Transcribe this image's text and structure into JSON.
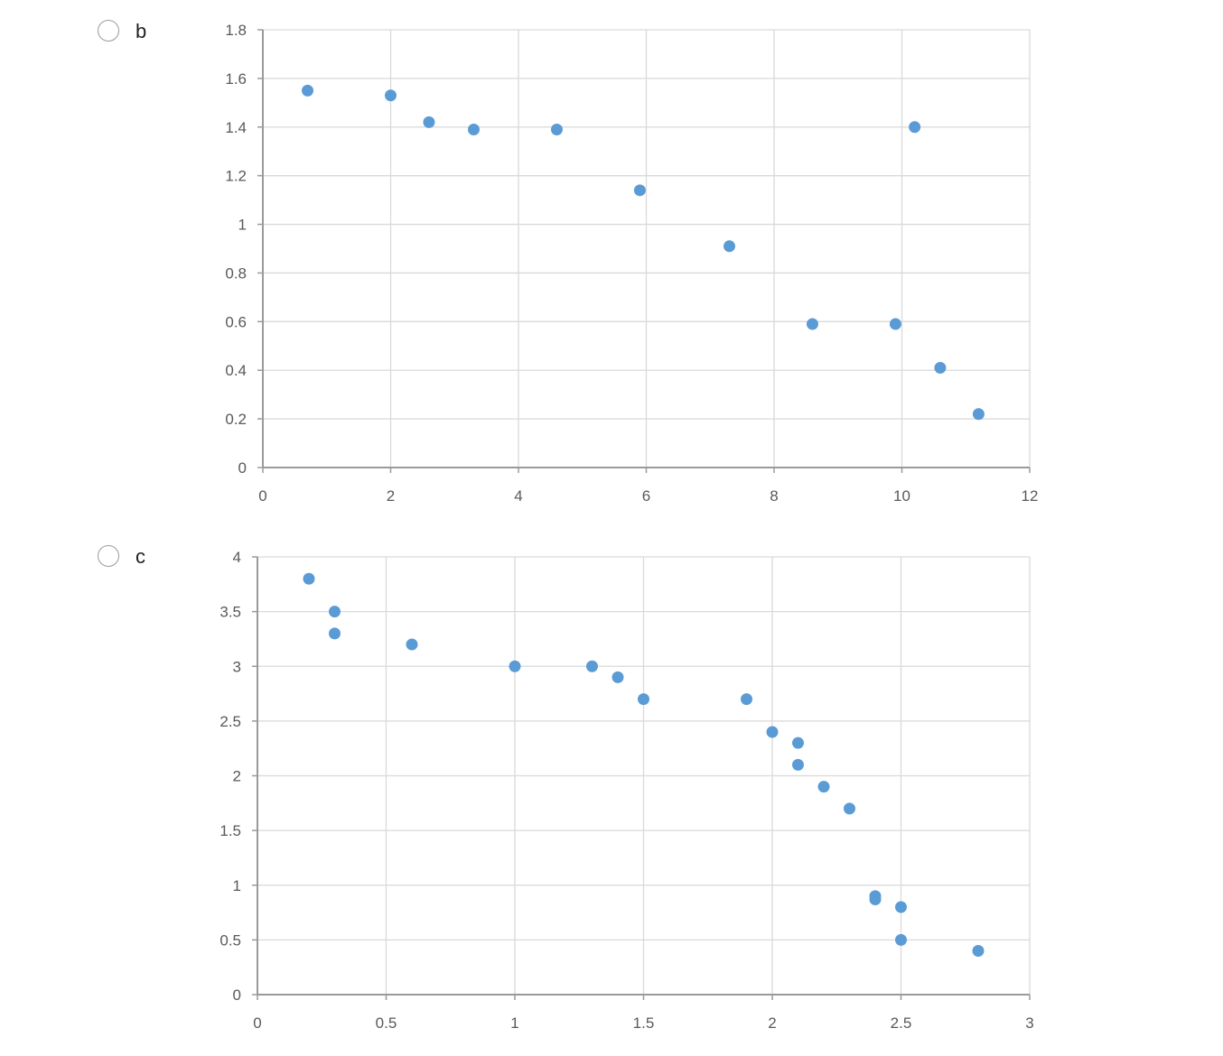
{
  "options": [
    {
      "label": "b",
      "chart_data": {
        "type": "scatter",
        "title": "",
        "xlabel": "",
        "ylabel": "",
        "xlim": [
          0,
          12
        ],
        "ylim": [
          0,
          1.8
        ],
        "xticks": [
          "0",
          "2",
          "4",
          "6",
          "8",
          "10",
          "12"
        ],
        "yticks": [
          "0",
          "0.2",
          "0.4",
          "0.6",
          "0.8",
          "1",
          "1.2",
          "1.4",
          "1.6",
          "1.8"
        ],
        "grid": true,
        "legend": "none",
        "marker_color": "#5b9bd5",
        "series": [
          {
            "points": [
              [
                0.7,
                1.55
              ],
              [
                2.0,
                1.53
              ],
              [
                2.6,
                1.42
              ],
              [
                3.3,
                1.39
              ],
              [
                4.6,
                1.39
              ],
              [
                5.9,
                1.14
              ],
              [
                7.3,
                0.91
              ],
              [
                8.6,
                0.59
              ],
              [
                9.9,
                0.59
              ],
              [
                10.2,
                1.4
              ],
              [
                10.6,
                0.41
              ],
              [
                11.2,
                0.22
              ]
            ]
          }
        ]
      }
    },
    {
      "label": "c",
      "chart_data": {
        "type": "scatter",
        "title": "",
        "xlabel": "",
        "ylabel": "",
        "xlim": [
          0,
          3
        ],
        "ylim": [
          0,
          4
        ],
        "xticks": [
          "0",
          "0.5",
          "1",
          "1.5",
          "2",
          "2.5",
          "3"
        ],
        "yticks": [
          "0",
          "0.5",
          "1",
          "1.5",
          "2",
          "2.5",
          "3",
          "3.5",
          "4"
        ],
        "grid": true,
        "legend": "none",
        "marker_color": "#5b9bd5",
        "series": [
          {
            "points": [
              [
                0.2,
                3.8
              ],
              [
                0.3,
                3.5
              ],
              [
                0.3,
                3.3
              ],
              [
                0.6,
                3.2
              ],
              [
                1.0,
                3.0
              ],
              [
                1.3,
                3.0
              ],
              [
                1.4,
                2.9
              ],
              [
                1.5,
                2.7
              ],
              [
                1.9,
                2.7
              ],
              [
                2.0,
                2.4
              ],
              [
                2.1,
                2.3
              ],
              [
                2.1,
                2.1
              ],
              [
                2.2,
                1.9
              ],
              [
                2.3,
                1.7
              ],
              [
                2.4,
                0.9
              ],
              [
                2.4,
                0.87
              ],
              [
                2.5,
                0.8
              ],
              [
                2.5,
                0.5
              ],
              [
                2.8,
                0.4
              ]
            ]
          }
        ]
      }
    }
  ]
}
